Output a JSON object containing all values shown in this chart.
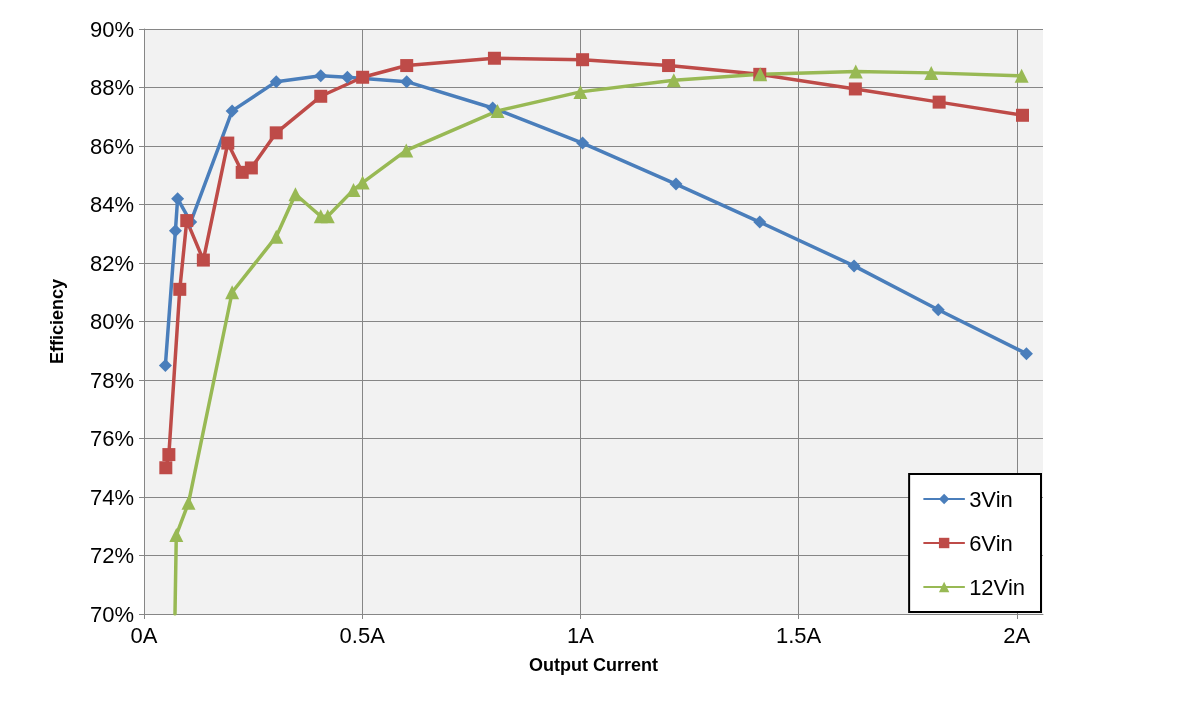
{
  "chart_data": {
    "type": "line",
    "xlabel": "Output Current",
    "ylabel": "Efficiency",
    "xlim": [
      0,
      2.06
    ],
    "xticks": [
      {
        "value": 0,
        "label": "0A"
      },
      {
        "value": 0.5,
        "label": "0.5A"
      },
      {
        "value": 1,
        "label": "1A"
      },
      {
        "value": 1.5,
        "label": "1.5A"
      },
      {
        "value": 2,
        "label": "2A"
      }
    ],
    "ylim": [
      70,
      90
    ],
    "yticks": [
      {
        "value": 70,
        "label": "70%"
      },
      {
        "value": 72,
        "label": "72%"
      },
      {
        "value": 74,
        "label": "74%"
      },
      {
        "value": 76,
        "label": "76%"
      },
      {
        "value": 78,
        "label": "78%"
      },
      {
        "value": 80,
        "label": "80%"
      },
      {
        "value": 82,
        "label": "82%"
      },
      {
        "value": 84,
        "label": "84%"
      },
      {
        "value": 86,
        "label": "86%"
      },
      {
        "value": 88,
        "label": "88%"
      },
      {
        "value": 90,
        "label": "90%"
      }
    ],
    "grid": true,
    "legend": "bottom right",
    "line_style": "solid",
    "series": [
      {
        "name": "3Vin",
        "color": "#4a7ebb",
        "marker": "diamond",
        "x": [
          0.049,
          0.072,
          0.077,
          0.107,
          0.202,
          0.303,
          0.405,
          0.466,
          0.602,
          0.799,
          1.005,
          1.219,
          1.411,
          1.627,
          1.82,
          2.022
        ],
        "values": [
          78.5,
          83.1,
          84.2,
          83.4,
          87.2,
          88.2,
          88.4,
          88.35,
          88.2,
          87.3,
          86.1,
          84.7,
          83.4,
          81.9,
          80.4,
          78.9
        ]
      },
      {
        "name": "6Vin",
        "color": "#be4b48",
        "marker": "square",
        "x": [
          0.05,
          0.057,
          0.082,
          0.098,
          0.136,
          0.192,
          0.225,
          0.246,
          0.303,
          0.405,
          0.501,
          0.602,
          0.803,
          1.005,
          1.202,
          1.411,
          1.63,
          1.822,
          2.013
        ],
        "values": [
          75.0,
          75.45,
          81.1,
          83.45,
          82.1,
          86.1,
          85.1,
          85.25,
          86.45,
          87.7,
          88.35,
          88.75,
          89.0,
          88.95,
          88.75,
          88.45,
          87.95,
          87.5,
          87.05
        ]
      },
      {
        "name": "12Vin",
        "color": "#98b954",
        "marker": "triangle",
        "x": [
          0.071,
          0.074,
          0.102,
          0.202,
          0.303,
          0.347,
          0.405,
          0.421,
          0.48,
          0.501,
          0.601,
          0.81,
          1.0,
          1.214,
          1.412,
          1.631,
          1.804,
          2.011
        ],
        "values": [
          70,
          72.7,
          73.8,
          81.0,
          82.9,
          84.35,
          83.6,
          83.6,
          84.5,
          84.75,
          85.85,
          87.2,
          87.85,
          88.25,
          88.45,
          88.55,
          88.5,
          88.4
        ]
      }
    ]
  }
}
